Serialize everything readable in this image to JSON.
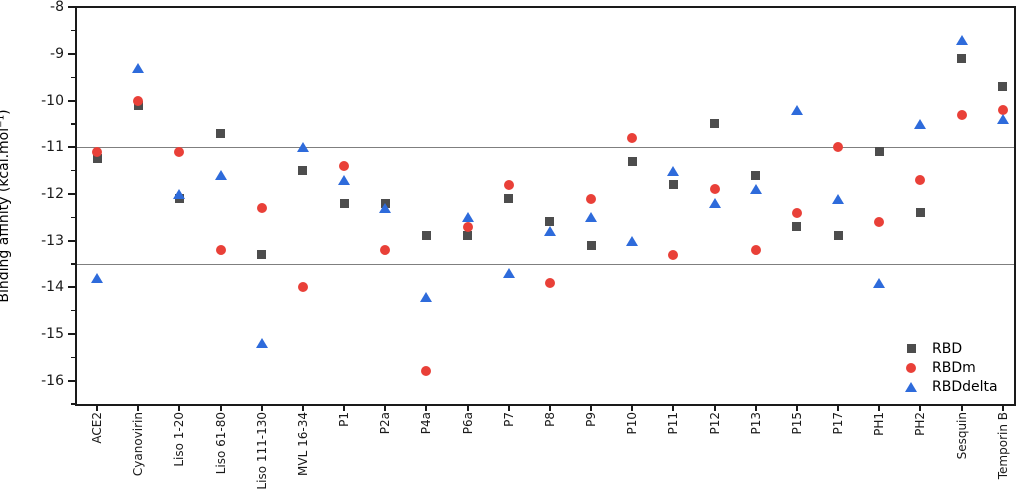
{
  "chart_data": {
    "type": "scatter",
    "title": "",
    "xlabel": "",
    "ylabel": "Binding affinity (kcal.mol⁻¹)",
    "categories": [
      "ACE2",
      "Cyanovirin",
      "Liso 1-20",
      "Liso 61-80",
      "Liso 111-130",
      "MVL 16-34",
      "P1",
      "P2a",
      "P4a",
      "P6a",
      "P7",
      "P8",
      "P9",
      "P10",
      "P11",
      "P12",
      "P13",
      "P15",
      "P17",
      "PH1",
      "PH2",
      "Sesquin",
      "Temporin B"
    ],
    "series": [
      {
        "name": "RBD",
        "marker": "square",
        "color": "#4d4d4d",
        "values": [
          -11.25,
          -10.1,
          -12.1,
          -10.7,
          -13.3,
          -11.5,
          -12.2,
          -12.2,
          -12.9,
          -12.9,
          -12.1,
          -12.6,
          -13.1,
          -11.3,
          -11.8,
          -10.5,
          -11.6,
          -12.7,
          -12.9,
          -11.1,
          -12.4,
          -9.1,
          -9.7
        ]
      },
      {
        "name": "RBDm",
        "marker": "circle",
        "color": "#e94038",
        "values": [
          -11.1,
          -10.0,
          -11.1,
          -13.2,
          -12.3,
          -14.0,
          -11.4,
          -13.2,
          -15.8,
          -12.7,
          -11.8,
          -13.9,
          -12.1,
          -10.8,
          -13.3,
          -11.9,
          -13.2,
          -12.4,
          -11.0,
          -12.6,
          -11.7,
          -10.3,
          -10.2
        ]
      },
      {
        "name": "RBDdelta",
        "marker": "triangle",
        "color": "#2e6bdb",
        "values": [
          -13.8,
          -9.3,
          -12.0,
          -11.6,
          -15.2,
          -11.0,
          -11.7,
          -12.3,
          -14.2,
          -12.5,
          -13.7,
          -12.8,
          -12.5,
          -13.0,
          -11.5,
          -12.2,
          -11.9,
          -10.2,
          -12.1,
          -13.9,
          -10.5,
          -8.7,
          -10.4
        ]
      }
    ],
    "yticks": [
      -8,
      -9,
      -10,
      -11,
      -12,
      -13,
      -14,
      -15,
      -16
    ],
    "ytick_labels": [
      "-8",
      "-9",
      "-10",
      "-11",
      "-12",
      "-13",
      "-14",
      "-15",
      "-16"
    ],
    "ylim": [
      -16.6,
      -8
    ],
    "reference_lines": [
      -11.0,
      -13.5
    ],
    "legend": {
      "position": "bottom-right",
      "entries": [
        "RBD",
        "RBDm",
        "RBDdelta"
      ]
    },
    "grid": false,
    "axis_color": "#1a1a1a",
    "reference_line_color": "#7f7f7f"
  }
}
